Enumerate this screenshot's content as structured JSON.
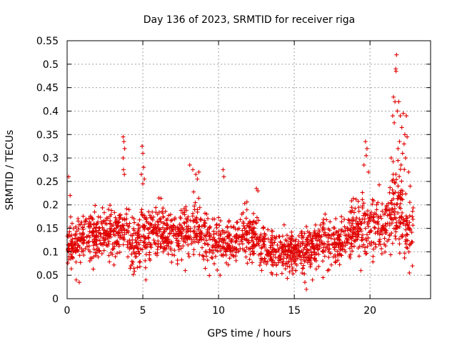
{
  "chart_data": {
    "type": "scatter",
    "title": "Day 136 of 2023, SRMTID for receiver riga",
    "xlabel": "GPS time / hours",
    "ylabel": "SRMTID / TECUs",
    "xlim": [
      0,
      24
    ],
    "ylim": [
      0,
      0.55
    ],
    "x_ticks": [
      0,
      5,
      10,
      15,
      20
    ],
    "x_tick_labels": [
      "0",
      "5",
      "10",
      "15",
      "20"
    ],
    "y_ticks": [
      0,
      0.05,
      0.1,
      0.15,
      0.2,
      0.25,
      0.3,
      0.35,
      0.4,
      0.45,
      0.5,
      0.55
    ],
    "y_tick_labels": [
      "0",
      "0.05",
      "0.1",
      "0.15",
      "0.2",
      "0.25",
      "0.3",
      "0.35",
      "0.4",
      "0.45",
      "0.5",
      "0.55"
    ],
    "grid": true,
    "marker": "+",
    "series": [
      {
        "name": "SRMTID",
        "color": "#e00000",
        "profile": {
          "x": [
            0,
            1,
            2,
            3,
            3.7,
            4.5,
            5,
            6,
            7,
            8,
            8.5,
            9,
            10,
            11,
            12,
            12.5,
            13,
            14,
            15,
            16,
            17,
            18,
            19,
            19.5,
            20,
            21,
            21.5,
            22,
            22.5,
            23
          ],
          "median": [
            0.12,
            0.125,
            0.13,
            0.135,
            0.15,
            0.11,
            0.14,
            0.145,
            0.13,
            0.14,
            0.16,
            0.13,
            0.125,
            0.12,
            0.14,
            0.13,
            0.105,
            0.1,
            0.1,
            0.11,
            0.125,
            0.12,
            0.15,
            0.15,
            0.16,
            0.15,
            0.2,
            0.18,
            0.15,
            0.14
          ],
          "spread": [
            0.04,
            0.045,
            0.05,
            0.045,
            0.06,
            0.05,
            0.055,
            0.045,
            0.045,
            0.05,
            0.06,
            0.045,
            0.045,
            0.04,
            0.05,
            0.045,
            0.04,
            0.04,
            0.04,
            0.045,
            0.045,
            0.045,
            0.05,
            0.07,
            0.06,
            0.05,
            0.08,
            0.08,
            0.06,
            0.05
          ]
        },
        "outliers": [
          {
            "x": 0.1,
            "y": 0.26
          },
          {
            "x": 0.2,
            "y": 0.22
          },
          {
            "x": 0.6,
            "y": 0.04
          },
          {
            "x": 0.8,
            "y": 0.035
          },
          {
            "x": 3.7,
            "y": 0.345
          },
          {
            "x": 3.75,
            "y": 0.335
          },
          {
            "x": 3.8,
            "y": 0.32
          },
          {
            "x": 3.7,
            "y": 0.3
          },
          {
            "x": 3.72,
            "y": 0.275
          },
          {
            "x": 3.78,
            "y": 0.265
          },
          {
            "x": 4.95,
            "y": 0.325
          },
          {
            "x": 5.0,
            "y": 0.31
          },
          {
            "x": 5.05,
            "y": 0.28
          },
          {
            "x": 4.9,
            "y": 0.265
          },
          {
            "x": 5.1,
            "y": 0.255
          },
          {
            "x": 5.0,
            "y": 0.245
          },
          {
            "x": 5.2,
            "y": 0.04
          },
          {
            "x": 8.1,
            "y": 0.285
          },
          {
            "x": 8.3,
            "y": 0.275
          },
          {
            "x": 8.5,
            "y": 0.265
          },
          {
            "x": 8.6,
            "y": 0.255
          },
          {
            "x": 8.7,
            "y": 0.27
          },
          {
            "x": 7.8,
            "y": 0.06
          },
          {
            "x": 10.3,
            "y": 0.275
          },
          {
            "x": 10.35,
            "y": 0.26
          },
          {
            "x": 10.1,
            "y": 0.05
          },
          {
            "x": 12.5,
            "y": 0.235
          },
          {
            "x": 12.6,
            "y": 0.23
          },
          {
            "x": 15.8,
            "y": 0.02
          },
          {
            "x": 15.7,
            "y": 0.035
          },
          {
            "x": 16.2,
            "y": 0.04
          },
          {
            "x": 16.9,
            "y": 0.045
          },
          {
            "x": 17.2,
            "y": 0.06
          },
          {
            "x": 19.7,
            "y": 0.335
          },
          {
            "x": 19.8,
            "y": 0.32
          },
          {
            "x": 19.75,
            "y": 0.305
          },
          {
            "x": 19.6,
            "y": 0.285
          },
          {
            "x": 19.9,
            "y": 0.27
          },
          {
            "x": 19.4,
            "y": 0.06
          },
          {
            "x": 21.55,
            "y": 0.43
          },
          {
            "x": 21.65,
            "y": 0.42
          },
          {
            "x": 21.75,
            "y": 0.52
          },
          {
            "x": 21.7,
            "y": 0.49
          },
          {
            "x": 21.72,
            "y": 0.485
          },
          {
            "x": 21.9,
            "y": 0.42
          },
          {
            "x": 21.5,
            "y": 0.39
          },
          {
            "x": 21.8,
            "y": 0.4
          },
          {
            "x": 22.0,
            "y": 0.39
          },
          {
            "x": 22.2,
            "y": 0.395
          },
          {
            "x": 22.4,
            "y": 0.39
          },
          {
            "x": 21.6,
            "y": 0.375
          },
          {
            "x": 22.1,
            "y": 0.365
          },
          {
            "x": 22.3,
            "y": 0.35
          },
          {
            "x": 22.45,
            "y": 0.345
          },
          {
            "x": 21.95,
            "y": 0.335
          },
          {
            "x": 22.25,
            "y": 0.33
          },
          {
            "x": 21.85,
            "y": 0.32
          },
          {
            "x": 22.15,
            "y": 0.31
          },
          {
            "x": 22.35,
            "y": 0.3
          },
          {
            "x": 21.4,
            "y": 0.3
          },
          {
            "x": 22.05,
            "y": 0.285
          },
          {
            "x": 22.55,
            "y": 0.27
          },
          {
            "x": 22.65,
            "y": 0.24
          },
          {
            "x": 22.6,
            "y": 0.055
          },
          {
            "x": 22.8,
            "y": 0.07
          }
        ]
      }
    ]
  }
}
